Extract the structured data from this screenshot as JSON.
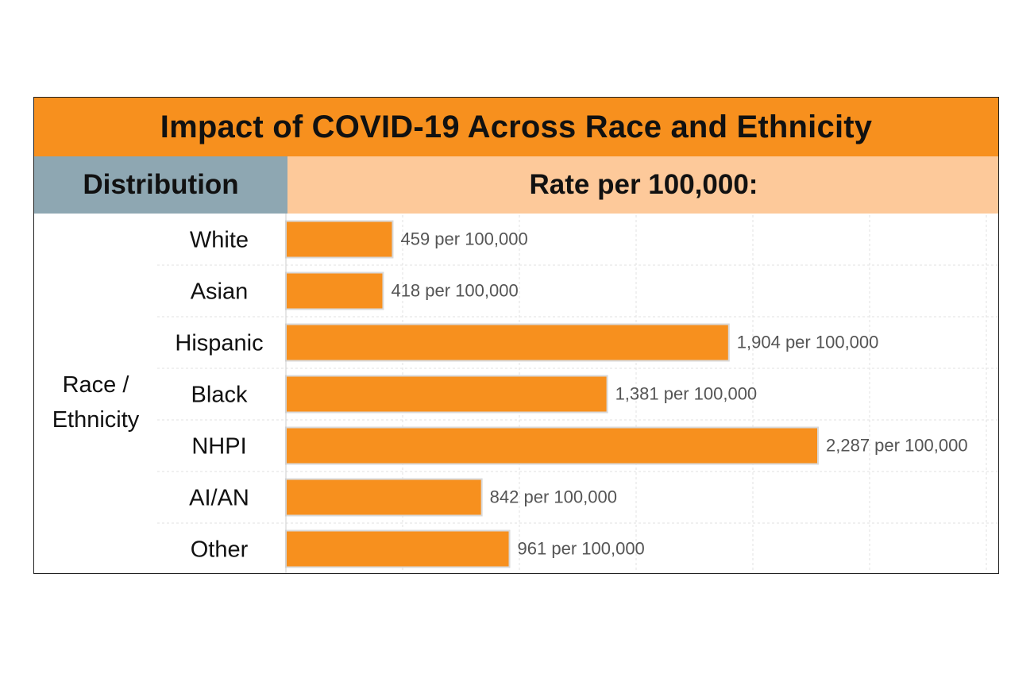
{
  "header": {
    "title": "Impact of COVID-19 Across Race and Ethnicity",
    "left_heading": "Distribution",
    "right_heading": "Rate per 100,000:"
  },
  "group_label": "Race / Ethnicity",
  "colors": {
    "title_bg": "#f7901e",
    "left_heading_bg": "#8ea7b2",
    "right_heading_bg": "#fdc99a",
    "bar_fill": "#f7901e",
    "bar_stroke": "#d9d9d9",
    "value_text": "#555555"
  },
  "chart_data": {
    "type": "bar",
    "orientation": "horizontal",
    "title": "Impact of COVID-19 Across Race and Ethnicity",
    "xlabel": "Rate per 100,000:",
    "ylabel": "Race / Ethnicity",
    "categories": [
      "White",
      "Asian",
      "Hispanic",
      "Black",
      "NHPI",
      "AI/AN",
      "Other"
    ],
    "values": [
      459,
      418,
      1904,
      1381,
      2287,
      842,
      961
    ],
    "data_labels": [
      "459 per 100,000",
      "418 per 100,000",
      "1,904 per 100,000",
      "1,381 per 100,000",
      "2,287 per 100,000",
      "842 per 100,000",
      "961 per 100,000"
    ],
    "xlim": [
      0,
      3000
    ],
    "grid": true,
    "legend": "none"
  }
}
